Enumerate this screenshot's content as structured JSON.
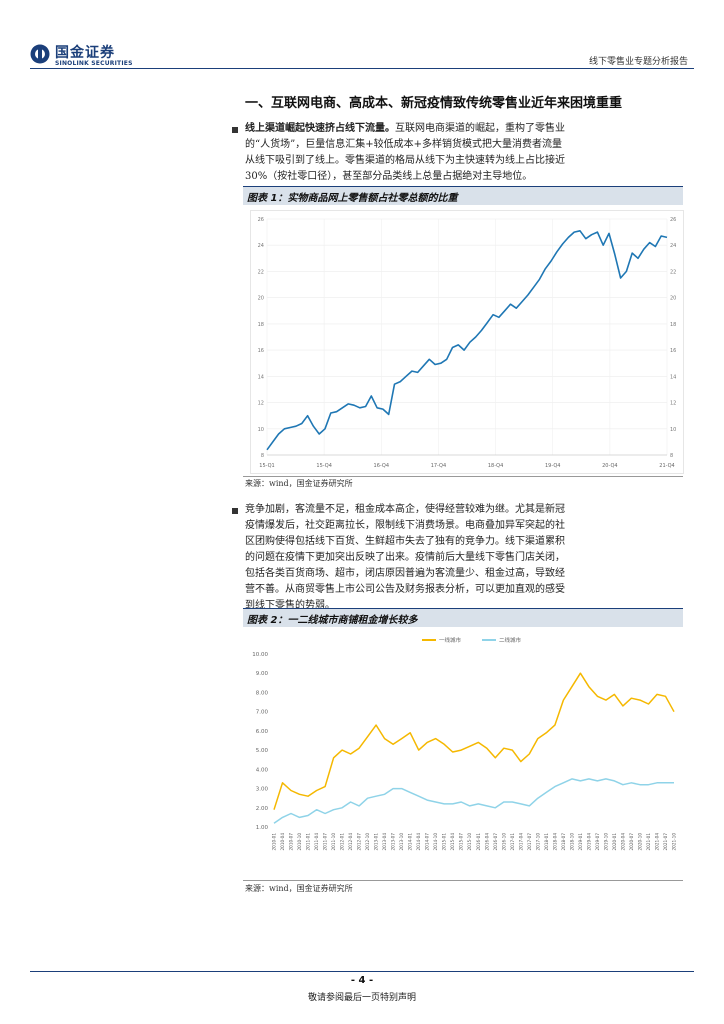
{
  "header": {
    "brand_cn": "国金证券",
    "brand_en": "SINOLINK SECURITIES",
    "report_type": "线下零售业专题分析报告"
  },
  "section": {
    "title": "一、互联网电商、高成本、新冠疫情致传统零售业近年来困境重重"
  },
  "paragraph1": {
    "lead": "线上渠道崛起快速挤占线下流量。",
    "lines": [
      "互联网电商渠道的崛起，重构了零售业",
      "的“人货场”，巨量信息汇集+较低成本+多样销货模式把大量消费者流量",
      "从线下吸引到了线上。零售渠道的格局从线下为主快速转为线上占比接近",
      "30%（按社零口径），甚至部分品类线上总量占据绝对主导地位。"
    ]
  },
  "figure1": {
    "title": "图表 1：实物商品网上零售额占社零总额的比重",
    "source": "来源：wind，国金证券研究所"
  },
  "paragraph2": {
    "lines": [
      "竞争加剧，客流量不足，租金成本高企，使得经营较难为继。尤其是新冠",
      "疫情爆发后，社交距离拉长，限制线下消费场景。电商叠加异军突起的社",
      "区团购使得包括线下百货、生鲜超市失去了独有的竞争力。线下渠道累积",
      "的问题在疫情下更加突出反映了出来。疫情前后大量线下零售门店关闭，",
      "包括各类百货商场、超市，闭店原因普遍为客流量少、租金过高，导致经",
      "营不善。从商贸零售上市公司公告及财务报表分析，可以更加直观的感受",
      "到线下零售的势弱。"
    ]
  },
  "figure2": {
    "title": "图表 2：一二线城市商铺租金增长较多",
    "source": "来源：wind，国金证券研究所"
  },
  "footer": {
    "page": "- 4 -",
    "note": "敬请参阅最后一页特别声明"
  },
  "chart_data": [
    {
      "type": "line",
      "ylim": [
        8,
        26
      ],
      "y_ticks": [
        "8",
        "10",
        "12",
        "14",
        "16",
        "18",
        "20",
        "22",
        "24",
        "26"
      ],
      "x_ticks": [
        "15-Q1",
        "15-Q4",
        "16-Q4",
        "17-Q4",
        "18-Q4",
        "19-Q4",
        "20-Q4",
        "21-Q4"
      ],
      "color": "#1f77b4",
      "series": [
        {
          "values": [
            8.4,
            9.0,
            9.6,
            10.0,
            10.1,
            10.2,
            10.4,
            11.0,
            10.2,
            9.6,
            10.0,
            11.2,
            11.3,
            11.6,
            11.9,
            11.8,
            11.6,
            11.7,
            12.5,
            11.6,
            11.5,
            11.1,
            13.4,
            13.6,
            14.0,
            14.4,
            14.3,
            14.8,
            15.3,
            14.9,
            15.0,
            15.3,
            16.2,
            16.4,
            16.0,
            16.6,
            17.0,
            17.5,
            18.1,
            18.7,
            18.5,
            19.0,
            19.5,
            19.2,
            19.7,
            20.2,
            20.8,
            21.4,
            22.2,
            22.8,
            23.5,
            24.1,
            24.6,
            25.0,
            25.1,
            24.5,
            24.8,
            25.0,
            24.0,
            24.9,
            23.3,
            21.5,
            22.0,
            23.4,
            23.0,
            23.7,
            24.2,
            23.9,
            24.7,
            24.6
          ]
        }
      ]
    },
    {
      "type": "line",
      "ylim": [
        1.0,
        10.0
      ],
      "y_ticks": [
        "10.00",
        "9.00",
        "8.00",
        "7.00",
        "6.00",
        "5.00",
        "4.00",
        "3.00",
        "2.00",
        "1.00"
      ],
      "x_ticks": [
        "2010-01",
        "2010-04",
        "2010-07",
        "2010-10",
        "2011-01",
        "2011-04",
        "2011-07",
        "2011-10",
        "2012-01",
        "2012-04",
        "2012-07",
        "2012-10",
        "2013-01",
        "2013-04",
        "2013-07",
        "2013-10",
        "2014-01",
        "2014-04",
        "2014-07",
        "2014-10",
        "2015-01",
        "2015-04",
        "2015-07",
        "2015-10",
        "2016-01",
        "2016-04",
        "2016-07",
        "2016-10",
        "2017-01",
        "2017-04",
        "2017-07",
        "2017-10",
        "2018-01",
        "2018-04",
        "2018-07",
        "2018-10",
        "2019-01",
        "2019-04",
        "2019-07",
        "2019-10",
        "2020-01",
        "2020-04",
        "2020-07",
        "2020-10",
        "2021-01",
        "2021-04",
        "2021-07",
        "2021-10"
      ],
      "series": [
        {
          "name": "一线城市",
          "color": "#f5b800",
          "values": [
            1.9,
            3.3,
            2.9,
            2.7,
            2.6,
            2.9,
            3.1,
            4.6,
            5.0,
            4.8,
            5.1,
            5.7,
            6.3,
            5.6,
            5.3,
            5.6,
            5.9,
            5.0,
            5.4,
            5.6,
            5.3,
            4.9,
            5.0,
            5.2,
            5.4,
            5.1,
            4.6,
            5.1,
            5.0,
            4.4,
            4.8,
            5.6,
            5.9,
            6.3,
            7.6,
            8.3,
            9.0,
            8.3,
            7.8,
            7.6,
            7.9,
            7.3,
            7.7,
            7.6,
            7.4,
            7.9,
            7.8,
            7.0
          ]
        },
        {
          "name": "二线城市",
          "color": "#8fd3e8",
          "values": [
            1.2,
            1.5,
            1.7,
            1.5,
            1.6,
            1.9,
            1.7,
            1.9,
            2.0,
            2.3,
            2.1,
            2.5,
            2.6,
            2.7,
            3.0,
            3.0,
            2.8,
            2.6,
            2.4,
            2.3,
            2.2,
            2.2,
            2.3,
            2.1,
            2.2,
            2.1,
            2.0,
            2.3,
            2.3,
            2.2,
            2.1,
            2.5,
            2.8,
            3.1,
            3.3,
            3.5,
            3.4,
            3.5,
            3.4,
            3.5,
            3.4,
            3.2,
            3.3,
            3.2,
            3.2,
            3.3,
            3.3,
            3.3
          ]
        }
      ]
    }
  ]
}
